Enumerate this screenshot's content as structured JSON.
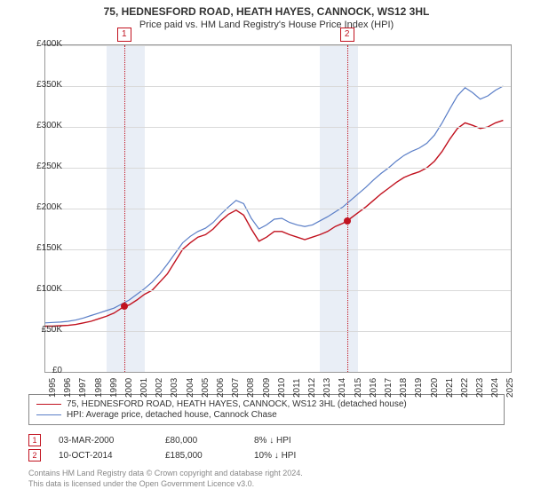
{
  "title": "75, HEDNESFORD ROAD, HEATH HAYES, CANNOCK, WS12 3HL",
  "subtitle": "Price paid vs. HM Land Registry's House Price Index (HPI)",
  "chart": {
    "type": "line",
    "background_color": "#ffffff",
    "shade_color": "#e9eef6",
    "grid_color": "#d9d9d9",
    "border_color": "#999999",
    "ylim": [
      0,
      400000
    ],
    "ytick_step": 50000,
    "ylabels": [
      "£0",
      "£50K",
      "£100K",
      "£150K",
      "£200K",
      "£250K",
      "£300K",
      "£350K",
      "£400K"
    ],
    "xlim": [
      1995,
      2025.5
    ],
    "xticks": [
      1995,
      1996,
      1997,
      1998,
      1999,
      2000,
      2001,
      2002,
      2003,
      2004,
      2005,
      2006,
      2007,
      2008,
      2009,
      2010,
      2011,
      2012,
      2013,
      2014,
      2015,
      2016,
      2017,
      2018,
      2019,
      2020,
      2021,
      2022,
      2023,
      2024,
      2025
    ],
    "shade_ranges": [
      [
        1999,
        2001.5
      ],
      [
        2013,
        2015.5
      ]
    ],
    "event_lines": [
      2000.17,
      2014.77
    ],
    "series": [
      {
        "name": "subject",
        "color": "#c1121f",
        "width": 1.4,
        "points": [
          [
            1995,
            56000
          ],
          [
            1995.5,
            56000
          ],
          [
            1996,
            56500
          ],
          [
            1996.5,
            57000
          ],
          [
            1997,
            58000
          ],
          [
            1997.5,
            60000
          ],
          [
            1998,
            62000
          ],
          [
            1998.5,
            65000
          ],
          [
            1999,
            68000
          ],
          [
            1999.5,
            72000
          ],
          [
            2000,
            78000
          ],
          [
            2000.17,
            80000
          ],
          [
            2000.5,
            82000
          ],
          [
            2001,
            88000
          ],
          [
            2001.5,
            95000
          ],
          [
            2002,
            100000
          ],
          [
            2002.5,
            110000
          ],
          [
            2003,
            120000
          ],
          [
            2003.5,
            135000
          ],
          [
            2004,
            150000
          ],
          [
            2004.5,
            158000
          ],
          [
            2005,
            165000
          ],
          [
            2005.5,
            168000
          ],
          [
            2006,
            175000
          ],
          [
            2006.5,
            185000
          ],
          [
            2007,
            193000
          ],
          [
            2007.5,
            198000
          ],
          [
            2008,
            192000
          ],
          [
            2008.5,
            175000
          ],
          [
            2009,
            160000
          ],
          [
            2009.5,
            165000
          ],
          [
            2010,
            172000
          ],
          [
            2010.5,
            172000
          ],
          [
            2011,
            168000
          ],
          [
            2011.5,
            165000
          ],
          [
            2012,
            162000
          ],
          [
            2012.5,
            165000
          ],
          [
            2013,
            168000
          ],
          [
            2013.5,
            172000
          ],
          [
            2014,
            178000
          ],
          [
            2014.5,
            182000
          ],
          [
            2014.77,
            185000
          ],
          [
            2015,
            188000
          ],
          [
            2015.5,
            195000
          ],
          [
            2016,
            202000
          ],
          [
            2016.5,
            210000
          ],
          [
            2017,
            218000
          ],
          [
            2017.5,
            225000
          ],
          [
            2018,
            232000
          ],
          [
            2018.5,
            238000
          ],
          [
            2019,
            242000
          ],
          [
            2019.5,
            245000
          ],
          [
            2020,
            250000
          ],
          [
            2020.5,
            258000
          ],
          [
            2021,
            270000
          ],
          [
            2021.5,
            285000
          ],
          [
            2022,
            298000
          ],
          [
            2022.5,
            305000
          ],
          [
            2023,
            302000
          ],
          [
            2023.5,
            298000
          ],
          [
            2024,
            300000
          ],
          [
            2024.5,
            305000
          ],
          [
            2025,
            308000
          ]
        ]
      },
      {
        "name": "hpi",
        "color": "#5a7ec7",
        "width": 1.2,
        "points": [
          [
            1995,
            60000
          ],
          [
            1995.5,
            60500
          ],
          [
            1996,
            61000
          ],
          [
            1996.5,
            62000
          ],
          [
            1997,
            63500
          ],
          [
            1997.5,
            66000
          ],
          [
            1998,
            69000
          ],
          [
            1998.5,
            72000
          ],
          [
            1999,
            75000
          ],
          [
            1999.5,
            78000
          ],
          [
            2000,
            83000
          ],
          [
            2000.5,
            88000
          ],
          [
            2001,
            95000
          ],
          [
            2001.5,
            102000
          ],
          [
            2002,
            110000
          ],
          [
            2002.5,
            120000
          ],
          [
            2003,
            132000
          ],
          [
            2003.5,
            145000
          ],
          [
            2004,
            158000
          ],
          [
            2004.5,
            166000
          ],
          [
            2005,
            172000
          ],
          [
            2005.5,
            176000
          ],
          [
            2006,
            183000
          ],
          [
            2006.5,
            193000
          ],
          [
            2007,
            202000
          ],
          [
            2007.5,
            210000
          ],
          [
            2008,
            206000
          ],
          [
            2008.5,
            188000
          ],
          [
            2009,
            175000
          ],
          [
            2009.5,
            180000
          ],
          [
            2010,
            187000
          ],
          [
            2010.5,
            188000
          ],
          [
            2011,
            183000
          ],
          [
            2011.5,
            180000
          ],
          [
            2012,
            178000
          ],
          [
            2012.5,
            180000
          ],
          [
            2013,
            185000
          ],
          [
            2013.5,
            190000
          ],
          [
            2014,
            196000
          ],
          [
            2014.5,
            202000
          ],
          [
            2015,
            210000
          ],
          [
            2015.5,
            218000
          ],
          [
            2016,
            226000
          ],
          [
            2016.5,
            235000
          ],
          [
            2017,
            243000
          ],
          [
            2017.5,
            250000
          ],
          [
            2018,
            258000
          ],
          [
            2018.5,
            265000
          ],
          [
            2019,
            270000
          ],
          [
            2019.5,
            274000
          ],
          [
            2020,
            280000
          ],
          [
            2020.5,
            290000
          ],
          [
            2021,
            305000
          ],
          [
            2021.5,
            322000
          ],
          [
            2022,
            338000
          ],
          [
            2022.5,
            348000
          ],
          [
            2023,
            342000
          ],
          [
            2023.5,
            334000
          ],
          [
            2024,
            338000
          ],
          [
            2024.5,
            345000
          ],
          [
            2025,
            350000
          ]
        ]
      }
    ],
    "markers": [
      {
        "x": 2000.17,
        "y": 80000,
        "tag": "1"
      },
      {
        "x": 2014.77,
        "y": 185000,
        "tag": "2"
      }
    ]
  },
  "legend": [
    {
      "color": "#c1121f",
      "label": "75, HEDNESFORD ROAD, HEATH HAYES, CANNOCK, WS12 3HL (detached house)"
    },
    {
      "color": "#5a7ec7",
      "label": "HPI: Average price, detached house, Cannock Chase"
    }
  ],
  "events": [
    {
      "tag": "1",
      "date": "03-MAR-2000",
      "price": "£80,000",
      "diff": "8% ↓ HPI"
    },
    {
      "tag": "2",
      "date": "10-OCT-2014",
      "price": "£185,000",
      "diff": "10% ↓ HPI"
    }
  ],
  "attribution": {
    "line1": "Contains HM Land Registry data © Crown copyright and database right 2024.",
    "line2": "This data is licensed under the Open Government Licence v3.0."
  }
}
